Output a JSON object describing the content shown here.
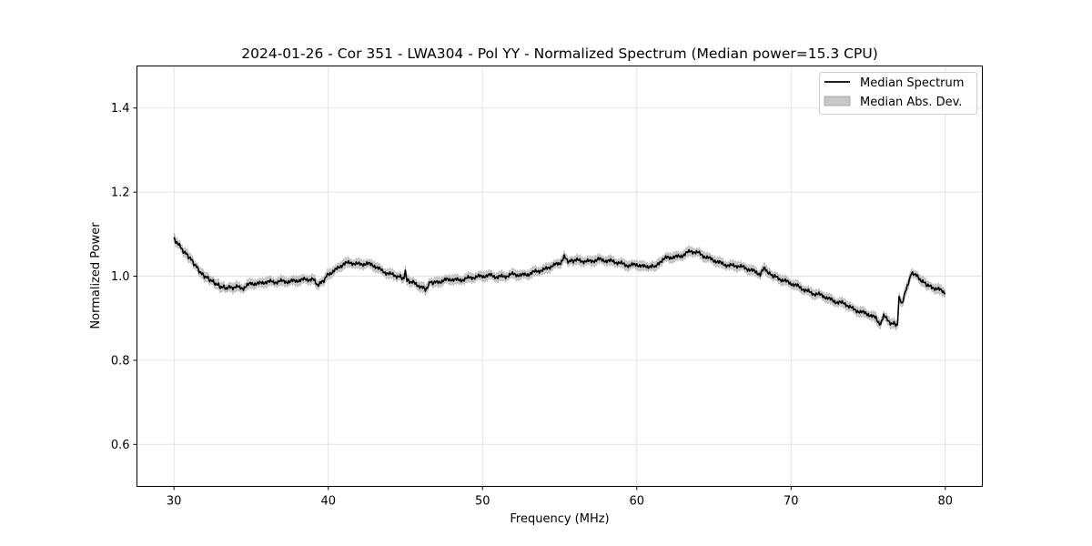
{
  "chart_data": {
    "type": "line",
    "title": "2024-01-26 - Cor 351 - LWA304 - Pol YY - Normalized Spectrum (Median power=15.3 CPU)",
    "xlabel": "Frequency (MHz)",
    "ylabel": "Normalized Power",
    "xlim": [
      27.6,
      82.4
    ],
    "ylim": [
      0.5,
      1.5
    ],
    "xticks": [
      30,
      40,
      50,
      60,
      70,
      80
    ],
    "yticks": [
      0.6,
      0.8,
      1.0,
      1.2,
      1.4
    ],
    "xtick_labels": [
      "30",
      "40",
      "50",
      "60",
      "70",
      "80"
    ],
    "ytick_labels": [
      "0.6",
      "0.8",
      "1.0",
      "1.2",
      "1.4"
    ],
    "grid": true,
    "legend_position": "top-right",
    "series": [
      {
        "name": "Median Spectrum",
        "color": "#000000",
        "x": [
          30.0,
          30.3,
          30.6,
          31.0,
          31.4,
          31.8,
          32.2,
          32.6,
          33.0,
          33.4,
          34.0,
          34.5,
          35.0,
          35.5,
          36.0,
          36.5,
          37.0,
          37.5,
          38.0,
          38.5,
          39.0,
          39.3,
          39.6,
          40.0,
          40.5,
          41.0,
          41.5,
          42.0,
          42.5,
          43.0,
          43.5,
          44.0,
          44.5,
          44.9,
          45.0,
          45.1,
          45.5,
          46.0,
          46.3,
          46.6,
          47.0,
          47.5,
          48.0,
          48.5,
          49.0,
          49.5,
          50.0,
          50.5,
          51.0,
          51.5,
          52.0,
          52.5,
          53.0,
          53.5,
          54.0,
          54.5,
          55.0,
          55.3,
          55.6,
          56.0,
          56.5,
          57.0,
          57.5,
          58.0,
          58.5,
          59.0,
          59.5,
          60.0,
          60.5,
          61.0,
          61.2,
          61.5,
          62.0,
          62.5,
          63.0,
          63.5,
          64.0,
          64.5,
          65.0,
          65.5,
          66.0,
          66.5,
          67.0,
          67.5,
          68.0,
          68.3,
          68.6,
          69.0,
          69.5,
          70.0,
          70.5,
          71.0,
          71.5,
          72.0,
          72.5,
          73.0,
          73.5,
          74.0,
          74.5,
          75.0,
          75.5,
          75.8,
          76.0,
          76.5,
          76.9,
          77.0,
          77.2,
          77.4,
          77.6,
          77.8,
          78.0,
          78.3,
          78.6,
          79.0,
          79.5,
          80.0
        ],
        "y": [
          1.09,
          1.075,
          1.06,
          1.045,
          1.025,
          1.005,
          0.995,
          0.985,
          0.975,
          0.972,
          0.974,
          0.972,
          0.983,
          0.982,
          0.987,
          0.986,
          0.988,
          0.987,
          0.99,
          0.992,
          0.993,
          0.98,
          0.985,
          1.005,
          1.015,
          1.03,
          1.032,
          1.028,
          1.03,
          1.025,
          1.012,
          1.005,
          1.0,
          0.995,
          1.012,
          0.99,
          0.985,
          0.975,
          0.968,
          0.985,
          0.985,
          0.99,
          0.993,
          0.99,
          0.995,
          0.998,
          1.0,
          1.002,
          0.998,
          1.0,
          1.005,
          1.002,
          1.005,
          1.012,
          1.015,
          1.025,
          1.03,
          1.045,
          1.035,
          1.038,
          1.036,
          1.035,
          1.04,
          1.037,
          1.035,
          1.03,
          1.025,
          1.028,
          1.022,
          1.025,
          1.02,
          1.035,
          1.045,
          1.045,
          1.05,
          1.06,
          1.055,
          1.045,
          1.038,
          1.03,
          1.025,
          1.025,
          1.02,
          1.013,
          1.005,
          1.02,
          1.005,
          0.998,
          0.99,
          0.983,
          0.975,
          0.965,
          0.958,
          0.955,
          0.945,
          0.938,
          0.935,
          0.922,
          0.915,
          0.91,
          0.9,
          0.885,
          0.905,
          0.888,
          0.885,
          0.95,
          0.935,
          0.965,
          0.985,
          1.01,
          1.005,
          0.995,
          0.985,
          0.975,
          0.97,
          0.96
        ]
      },
      {
        "name": "Median Abs. Dev.",
        "color": "#bbbbbb",
        "band_halfwidth": 0.008
      }
    ]
  }
}
